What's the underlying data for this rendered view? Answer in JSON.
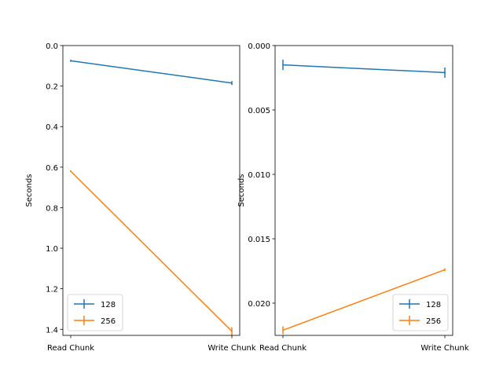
{
  "chart_data": [
    {
      "type": "line",
      "categories": [
        "Read Chunk",
        "Write Chunk"
      ],
      "title": "",
      "xlabel": "",
      "ylabel": "Seconds",
      "ylim": [
        1.43,
        0.0
      ],
      "yticks": [
        "0.0",
        "0.2",
        "0.4",
        "0.6",
        "0.8",
        "1.0",
        "1.2",
        "1.4"
      ],
      "y_inverted": true,
      "legend_position": "lower-left",
      "series": [
        {
          "name": "128",
          "color": "#1f77b4",
          "values": [
            0.075,
            0.185
          ],
          "errors": [
            0.005,
            0.01
          ]
        },
        {
          "name": "256",
          "color": "#ff7f0e",
          "values": [
            0.62,
            1.41
          ],
          "errors": [
            0.005,
            0.02
          ]
        }
      ]
    },
    {
      "type": "line",
      "categories": [
        "Read Chunk",
        "Write Chunk"
      ],
      "title": "",
      "xlabel": "",
      "ylabel": "Seconds",
      "ylim": [
        0.0225,
        0.0
      ],
      "yticks": [
        "0.000",
        "0.005",
        "0.010",
        "0.015",
        "0.020"
      ],
      "y_inverted": true,
      "legend_position": "lower-right",
      "series": [
        {
          "name": "128",
          "color": "#1f77b4",
          "values": [
            0.0015,
            0.0021
          ],
          "errors": [
            0.0004,
            0.0004
          ]
        },
        {
          "name": "256",
          "color": "#ff7f0e",
          "values": [
            0.0221,
            0.0174
          ],
          "errors": [
            0.0003,
            0.0001
          ]
        }
      ]
    }
  ]
}
